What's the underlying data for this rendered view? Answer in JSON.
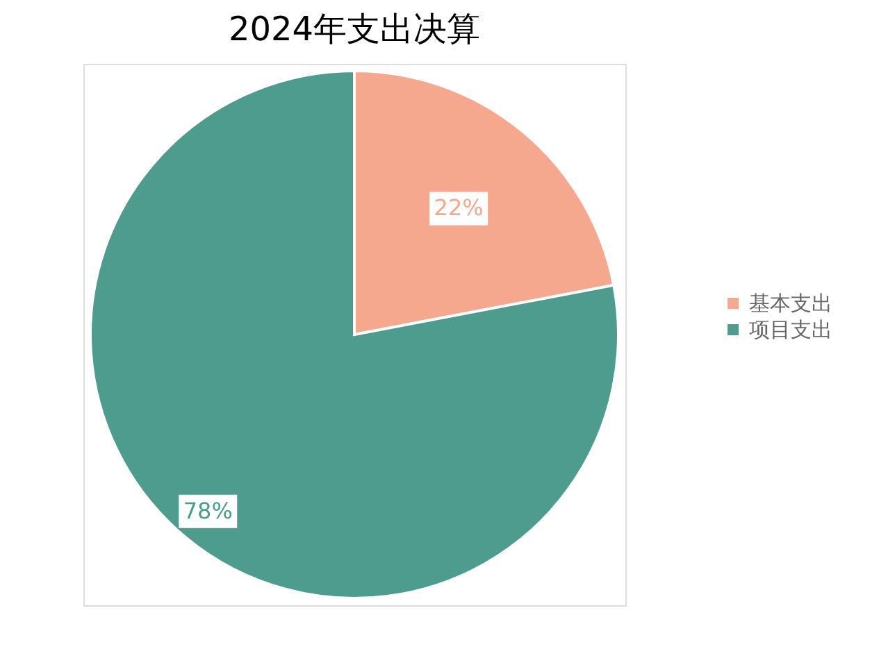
{
  "chart_data": {
    "type": "pie",
    "title": "2024年支出决算",
    "categories": [
      "基本支出",
      "项目支出"
    ],
    "values": [
      22,
      78
    ],
    "colors": [
      "#f5a88e",
      "#4d9c8d"
    ],
    "value_labels": [
      "22%",
      "78%"
    ],
    "legend": "right"
  }
}
